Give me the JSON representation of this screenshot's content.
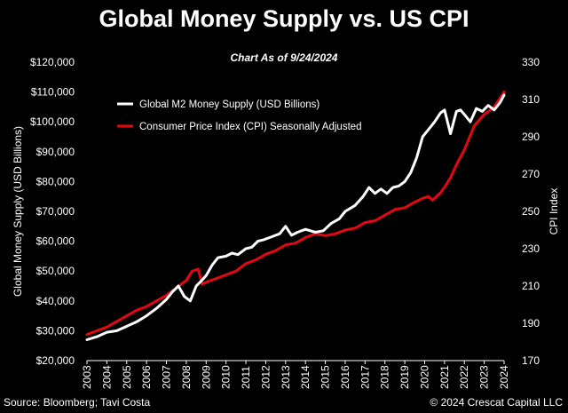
{
  "chart_data": {
    "type": "line",
    "title": "Global Money Supply vs. US CPI",
    "subtitle": "Chart As of 9/24/2024",
    "ylabel_left": "Global Money Supply (USD Billions)",
    "ylabel_right": "CPI Index",
    "xlabel": "",
    "x_ticks": [
      "2003",
      "2004",
      "2005",
      "2006",
      "2007",
      "2008",
      "2009",
      "2010",
      "2011",
      "2012",
      "2013",
      "2014",
      "2015",
      "2016",
      "2017",
      "2018",
      "2019",
      "2020",
      "2021",
      "2022",
      "2023",
      "2024"
    ],
    "y_left_ticks": [
      "$20,000",
      "$30,000",
      "$40,000",
      "$50,000",
      "$60,000",
      "$70,000",
      "$80,000",
      "$90,000",
      "$100,000",
      "$110,000",
      "$120,000"
    ],
    "y_left_range": [
      20000,
      120000
    ],
    "y_right_ticks": [
      "170",
      "190",
      "210",
      "230",
      "250",
      "270",
      "290",
      "310",
      "330"
    ],
    "y_right_range": [
      170,
      330
    ],
    "grid": false,
    "legend_position": "top-left",
    "series": [
      {
        "name": "Global M2 Money Supply (USD Billions)",
        "axis": "left",
        "color": "#ffffff",
        "x": [
          2003.0,
          2003.5,
          2004.0,
          2004.5,
          2005.0,
          2005.5,
          2006.0,
          2006.5,
          2007.0,
          2007.3,
          2007.6,
          2007.9,
          2008.2,
          2008.5,
          2008.8,
          2009.0,
          2009.3,
          2009.6,
          2010.0,
          2010.3,
          2010.6,
          2011.0,
          2011.3,
          2011.6,
          2011.9,
          2012.3,
          2012.7,
          2013.0,
          2013.3,
          2013.6,
          2014.0,
          2014.5,
          2014.9,
          2015.3,
          2015.7,
          2016.0,
          2016.5,
          2016.9,
          2017.2,
          2017.5,
          2017.8,
          2018.1,
          2018.4,
          2018.7,
          2019.0,
          2019.3,
          2019.6,
          2019.9,
          2020.2,
          2020.5,
          2020.8,
          2021.0,
          2021.3,
          2021.6,
          2021.8,
          2022.0,
          2022.3,
          2022.6,
          2022.9,
          2023.2,
          2023.5,
          2023.8,
          2024.0
        ],
        "y": [
          27000,
          28000,
          29500,
          30000,
          31500,
          33000,
          35000,
          37500,
          40500,
          43000,
          45000,
          41500,
          40000,
          45000,
          47000,
          48500,
          52000,
          54500,
          55000,
          56000,
          55500,
          57500,
          58000,
          60000,
          60500,
          61500,
          62500,
          65000,
          62000,
          63000,
          64000,
          63000,
          63500,
          66000,
          67500,
          70000,
          72000,
          75000,
          78000,
          76000,
          77500,
          76000,
          78000,
          78500,
          80000,
          83000,
          88000,
          95000,
          97500,
          100000,
          103000,
          104000,
          96000,
          103500,
          104000,
          102500,
          100000,
          104500,
          103500,
          105500,
          104000,
          106500,
          109000
        ]
      },
      {
        "name": "Consumer Price Index (CPI) Seasonally Adjusted",
        "axis": "right",
        "color": "#e30613",
        "x": [
          2003.0,
          2003.5,
          2004.0,
          2004.5,
          2005.0,
          2005.5,
          2006.0,
          2006.5,
          2007.0,
          2007.5,
          2008.0,
          2008.3,
          2008.6,
          2008.8,
          2009.0,
          2009.5,
          2010.0,
          2010.5,
          2011.0,
          2011.5,
          2012.0,
          2012.5,
          2013.0,
          2013.5,
          2014.0,
          2014.5,
          2015.0,
          2015.5,
          2016.0,
          2016.5,
          2017.0,
          2017.5,
          2018.0,
          2018.5,
          2019.0,
          2019.5,
          2019.9,
          2020.2,
          2020.4,
          2020.8,
          2021.0,
          2021.3,
          2021.6,
          2022.0,
          2022.5,
          2023.0,
          2023.5,
          2024.0
        ],
        "y": [
          184,
          186,
          188,
          191,
          194,
          197,
          199,
          202,
          205,
          209,
          213,
          218,
          219,
          211,
          212,
          214,
          216,
          218,
          222,
          224,
          227,
          229,
          232,
          233,
          236,
          238,
          237,
          238,
          240,
          241,
          244,
          245,
          248,
          251,
          252,
          255,
          257,
          258,
          256,
          260,
          263,
          268,
          275,
          283,
          296,
          302,
          306,
          314
        ]
      }
    ]
  },
  "footer": {
    "source": "Source: Bloomberg; Tavi Costa",
    "copyright": "© 2024 Crescat Capital LLC"
  }
}
